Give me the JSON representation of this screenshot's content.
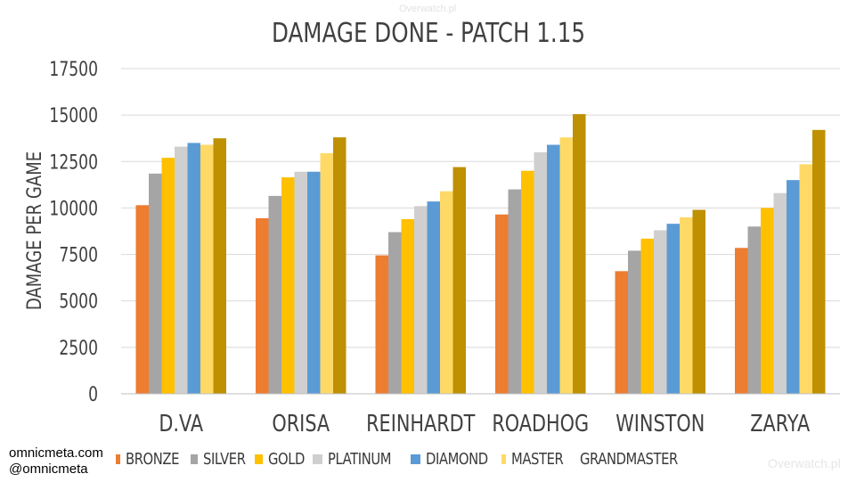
{
  "watermarks": {
    "top": "Overwatch.pl",
    "bottom_right": "Overwatch.pl"
  },
  "credits": {
    "site": "omnicmeta.com",
    "handle": "@omnicmeta"
  },
  "chart_data": {
    "type": "bar",
    "title": "DAMAGE DONE - PATCH 1.15",
    "xlabel": "",
    "ylabel": "DAMAGE PER GAME",
    "ylim": [
      0,
      17500
    ],
    "yticks": [
      0,
      2500,
      5000,
      7500,
      10000,
      12500,
      15000,
      17500
    ],
    "ytick_labels": [
      "0",
      "2500",
      "5000",
      "7500",
      "10000",
      "12500",
      "15000",
      "17500"
    ],
    "grid": true,
    "legend_position": "bottom",
    "categories": [
      "D.VA",
      "ORISA",
      "REINHARDT",
      "ROADHOG",
      "WINSTON",
      "ZARYA"
    ],
    "series": [
      {
        "name": "BRONZE",
        "color": "#ed7d31",
        "values": [
          10150,
          9450,
          7450,
          9650,
          6600,
          7850
        ]
      },
      {
        "name": "SILVER",
        "color": "#a5a5a5",
        "values": [
          11850,
          10650,
          8700,
          11000,
          7700,
          9000
        ]
      },
      {
        "name": "GOLD",
        "color": "#ffc000",
        "values": [
          12700,
          11650,
          9400,
          12000,
          8350,
          10000
        ]
      },
      {
        "name": "PLATINUM",
        "color": "#cfcfcf",
        "values": [
          13300,
          11950,
          10100,
          13000,
          8800,
          10800
        ]
      },
      {
        "name": "DIAMOND",
        "color": "#5b9bd5",
        "values": [
          13500,
          11950,
          10350,
          13400,
          9150,
          11500
        ]
      },
      {
        "name": "MASTER",
        "color": "#ffd966",
        "values": [
          13400,
          12950,
          10900,
          13800,
          9500,
          12350
        ]
      },
      {
        "name": "GRANDMASTER",
        "color": "#bf9000",
        "values": [
          13750,
          13800,
          12200,
          15050,
          9900,
          14200
        ]
      }
    ]
  }
}
